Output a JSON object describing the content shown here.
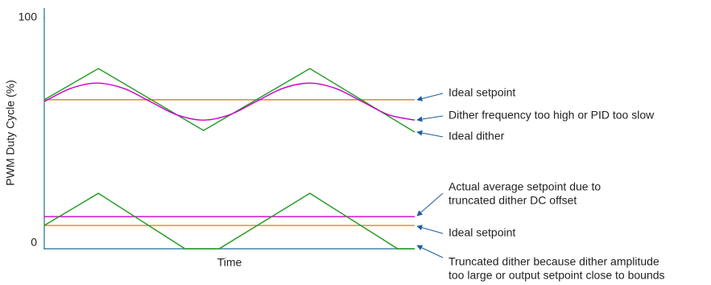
{
  "chart_data": {
    "type": "line",
    "ylabel": "PWM Duty Cycle (%)",
    "xlabel": "Time",
    "ylim": [
      0,
      100
    ],
    "yticks": [
      0,
      100
    ],
    "xlim": [
      0,
      100
    ],
    "series": [
      {
        "color": "#e8821e",
        "x": [
          0,
          100
        ],
        "values": [
          64.5,
          64.5
        ]
      },
      {
        "color": "#1f9a1f",
        "x": [
          0,
          14.6,
          43.0,
          71.7,
          100
        ],
        "values": [
          64.5,
          78,
          51.2,
          78,
          50.5
        ]
      },
      {
        "color": "#cc00cc",
        "smooth": true,
        "x": [
          0,
          7.15,
          14.3,
          21.45,
          28.6,
          35.75,
          42.9,
          50.05,
          57.2,
          64.35,
          71.5,
          78.65,
          85.8,
          92.95,
          100
        ],
        "values": [
          63.7,
          69.4,
          71.7,
          69.4,
          63.7,
          58.0,
          55.7,
          58.0,
          63.7,
          69.4,
          71.7,
          69.4,
          63.7,
          58.0,
          55.7
        ]
      },
      {
        "color": "#cc00cc",
        "x": [
          0,
          100
        ],
        "values": [
          13.9,
          13.9
        ]
      },
      {
        "color": "#e8821e",
        "x": [
          0,
          100
        ],
        "values": [
          10.1,
          10.1
        ]
      },
      {
        "color": "#1f9a1f",
        "x": [
          0,
          14.6,
          38.0,
          47.2,
          71.7,
          95.4,
          100
        ],
        "values": [
          10.1,
          24,
          0,
          0,
          24,
          0,
          0
        ]
      }
    ],
    "annotations": [
      {
        "lines": [
          "Ideal setpoint"
        ]
      },
      {
        "lines": [
          "Dither frequency too high or PID too slow"
        ]
      },
      {
        "lines": [
          "Ideal dither"
        ]
      },
      {
        "lines": [
          "Actual average setpoint due to",
          "truncated dither DC offset"
        ]
      },
      {
        "lines": [
          "Ideal setpoint"
        ]
      },
      {
        "lines": [
          "Truncated dither because dither amplitude",
          "too large or output setpoint close to bounds"
        ]
      }
    ]
  }
}
